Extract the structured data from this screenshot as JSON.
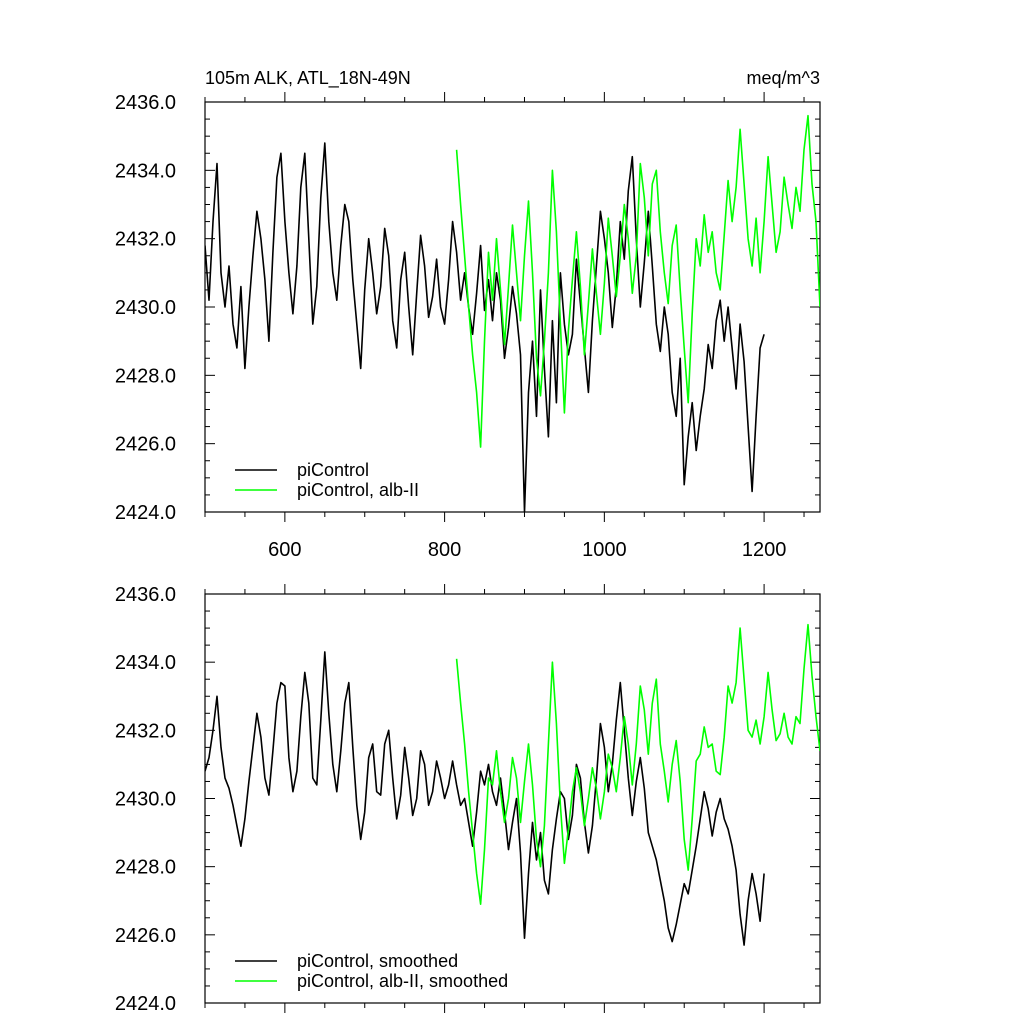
{
  "figure": {
    "title_left": "105m ALK, ATL_18N-49N",
    "title_right": "meq/m^3"
  },
  "chart_data": [
    {
      "type": "line",
      "title": "105m ALK, ATL_18N-49N",
      "units": "meq/m^3",
      "xlim": [
        500,
        1270
      ],
      "ylim": [
        2424.0,
        2436.0
      ],
      "x_ticks": [
        600,
        800,
        1000,
        1200
      ],
      "x_tick_labels": [
        "600",
        "800",
        "1000",
        "1200"
      ],
      "y_ticks": [
        2424,
        2426,
        2428,
        2430,
        2432,
        2434,
        2436
      ],
      "y_tick_labels": [
        "2424.0",
        "2426.0",
        "2428.0",
        "2430.0",
        "2432.0",
        "2434.0",
        "2436.0"
      ],
      "grid": false,
      "legend_position": "bottom-left",
      "series": [
        {
          "name": "piControl",
          "color": "#000000",
          "x": [
            500,
            505,
            510,
            515,
            520,
            525,
            530,
            535,
            540,
            545,
            550,
            555,
            560,
            565,
            570,
            575,
            580,
            585,
            590,
            595,
            600,
            605,
            610,
            615,
            620,
            625,
            630,
            635,
            640,
            645,
            650,
            655,
            660,
            665,
            670,
            675,
            680,
            685,
            690,
            695,
            700,
            705,
            710,
            715,
            720,
            725,
            730,
            735,
            740,
            745,
            750,
            755,
            760,
            765,
            770,
            775,
            780,
            785,
            790,
            795,
            800,
            805,
            810,
            815,
            820,
            825,
            830,
            835,
            840,
            845,
            850,
            855,
            860,
            865,
            870,
            875,
            880,
            885,
            890,
            895,
            900,
            905,
            910,
            915,
            920,
            925,
            930,
            935,
            940,
            945,
            950,
            955,
            960,
            965,
            970,
            975,
            980,
            985,
            990,
            995,
            1000,
            1005,
            1010,
            1015,
            1020,
            1025,
            1030,
            1035,
            1040,
            1045,
            1050,
            1055,
            1060,
            1065,
            1070,
            1075,
            1080,
            1085,
            1090,
            1095,
            1100,
            1105,
            1110,
            1115,
            1120,
            1125,
            1130,
            1135,
            1140,
            1145,
            1150,
            1155,
            1160,
            1165,
            1170,
            1175,
            1180,
            1185,
            1190,
            1195,
            1200
          ],
          "y": [
            2431.8,
            2430.2,
            2432.5,
            2434.2,
            2431.0,
            2430.0,
            2431.2,
            2429.5,
            2428.8,
            2430.6,
            2428.2,
            2430.0,
            2431.5,
            2432.8,
            2432.0,
            2430.8,
            2429.0,
            2431.6,
            2433.8,
            2434.5,
            2432.5,
            2431.0,
            2429.8,
            2431.2,
            2433.5,
            2434.5,
            2432.0,
            2429.5,
            2430.6,
            2433.2,
            2434.8,
            2432.5,
            2431.0,
            2430.2,
            2431.8,
            2433.0,
            2432.5,
            2430.8,
            2429.5,
            2428.2,
            2430.5,
            2432.0,
            2431.0,
            2429.8,
            2430.6,
            2432.3,
            2431.5,
            2429.6,
            2428.8,
            2430.8,
            2431.6,
            2430.0,
            2428.6,
            2430.4,
            2432.1,
            2431.2,
            2429.7,
            2430.3,
            2431.4,
            2430.0,
            2429.5,
            2430.8,
            2432.5,
            2431.6,
            2430.2,
            2431.0,
            2430.0,
            2429.2,
            2430.4,
            2431.8,
            2429.9,
            2430.8,
            2429.6,
            2431.0,
            2430.2,
            2428.5,
            2429.4,
            2430.6,
            2429.8,
            2428.6,
            2424.0,
            2427.5,
            2429.0,
            2426.8,
            2430.5,
            2428.2,
            2426.2,
            2429.6,
            2427.2,
            2431.0,
            2429.5,
            2428.6,
            2429.2,
            2431.4,
            2430.1,
            2428.8,
            2427.5,
            2429.6,
            2431.2,
            2432.8,
            2432.0,
            2431.0,
            2429.4,
            2430.6,
            2432.5,
            2431.4,
            2433.4,
            2434.4,
            2432.0,
            2430.0,
            2431.3,
            2432.8,
            2431.2,
            2429.5,
            2428.7,
            2430.0,
            2429.2,
            2427.5,
            2426.8,
            2428.5,
            2424.8,
            2426.2,
            2427.2,
            2425.8,
            2426.8,
            2427.6,
            2428.9,
            2428.2,
            2429.6,
            2430.2,
            2429.0,
            2430.0,
            2428.8,
            2427.6,
            2429.5,
            2428.4,
            2426.5,
            2424.6,
            2426.8,
            2428.8,
            2429.2
          ]
        },
        {
          "name": "piControl, alb-II",
          "color": "#00ff00",
          "x": [
            815,
            820,
            825,
            830,
            835,
            840,
            845,
            850,
            855,
            860,
            865,
            870,
            875,
            880,
            885,
            890,
            895,
            900,
            905,
            910,
            915,
            920,
            925,
            930,
            935,
            940,
            945,
            950,
            955,
            960,
            965,
            970,
            975,
            980,
            985,
            990,
            995,
            1000,
            1005,
            1010,
            1015,
            1020,
            1025,
            1030,
            1035,
            1040,
            1045,
            1050,
            1055,
            1060,
            1065,
            1070,
            1075,
            1080,
            1085,
            1090,
            1095,
            1100,
            1105,
            1110,
            1115,
            1120,
            1125,
            1130,
            1135,
            1140,
            1145,
            1150,
            1155,
            1160,
            1165,
            1170,
            1175,
            1180,
            1185,
            1190,
            1195,
            1200,
            1205,
            1210,
            1215,
            1220,
            1225,
            1230,
            1235,
            1240,
            1245,
            1250,
            1255,
            1260,
            1265,
            1270
          ],
          "y": [
            2434.6,
            2433.0,
            2431.5,
            2430.0,
            2428.6,
            2427.5,
            2425.9,
            2429.0,
            2431.6,
            2430.2,
            2432.0,
            2430.5,
            2428.9,
            2430.6,
            2432.4,
            2431.0,
            2429.6,
            2431.5,
            2433.1,
            2431.0,
            2428.5,
            2427.4,
            2429.0,
            2431.0,
            2434.0,
            2432.2,
            2429.5,
            2426.9,
            2429.3,
            2430.8,
            2432.2,
            2430.6,
            2428.6,
            2430.1,
            2431.7,
            2430.4,
            2429.2,
            2430.7,
            2432.6,
            2431.5,
            2430.3,
            2431.5,
            2433.0,
            2432.0,
            2430.4,
            2431.5,
            2434.2,
            2433.2,
            2431.5,
            2433.6,
            2434.0,
            2432.2,
            2431.0,
            2430.1,
            2431.8,
            2432.4,
            2430.5,
            2428.8,
            2427.2,
            2429.8,
            2432.0,
            2431.2,
            2432.7,
            2431.6,
            2432.2,
            2431.0,
            2430.5,
            2432.1,
            2433.7,
            2432.5,
            2433.5,
            2435.2,
            2433.6,
            2432.0,
            2431.2,
            2432.6,
            2431.0,
            2432.5,
            2434.4,
            2433.0,
            2431.6,
            2432.2,
            2433.8,
            2433.0,
            2432.3,
            2433.5,
            2432.8,
            2434.6,
            2435.6,
            2433.6,
            2432.5,
            2430.0
          ]
        }
      ]
    },
    {
      "type": "line",
      "xlim": [
        500,
        1270
      ],
      "ylim": [
        2424.0,
        2436.0
      ],
      "x_ticks": [
        600,
        800,
        1000,
        1200
      ],
      "y_ticks": [
        2424,
        2426,
        2428,
        2430,
        2432,
        2434,
        2436
      ],
      "y_tick_labels": [
        "2424.0",
        "2426.0",
        "2428.0",
        "2430.0",
        "2432.0",
        "2434.0",
        "2436.0"
      ],
      "grid": false,
      "legend_position": "bottom-left",
      "series": [
        {
          "name": "piControl, smoothed",
          "color": "#000000",
          "x": [
            500,
            505,
            510,
            515,
            520,
            525,
            530,
            535,
            540,
            545,
            550,
            555,
            560,
            565,
            570,
            575,
            580,
            585,
            590,
            595,
            600,
            605,
            610,
            615,
            620,
            625,
            630,
            635,
            640,
            645,
            650,
            655,
            660,
            665,
            670,
            675,
            680,
            685,
            690,
            695,
            700,
            705,
            710,
            715,
            720,
            725,
            730,
            735,
            740,
            745,
            750,
            755,
            760,
            765,
            770,
            775,
            780,
            785,
            790,
            795,
            800,
            805,
            810,
            815,
            820,
            825,
            830,
            835,
            840,
            845,
            850,
            855,
            860,
            865,
            870,
            875,
            880,
            885,
            890,
            895,
            900,
            905,
            910,
            915,
            920,
            925,
            930,
            935,
            940,
            945,
            950,
            955,
            960,
            965,
            970,
            975,
            980,
            985,
            990,
            995,
            1000,
            1005,
            1010,
            1015,
            1020,
            1025,
            1030,
            1035,
            1040,
            1045,
            1050,
            1055,
            1060,
            1065,
            1070,
            1075,
            1080,
            1085,
            1090,
            1095,
            1100,
            1105,
            1110,
            1115,
            1120,
            1125,
            1130,
            1135,
            1140,
            1145,
            1150,
            1155,
            1160,
            1165,
            1170,
            1175,
            1180,
            1185,
            1190,
            1195,
            1200
          ],
          "y": [
            2430.8,
            2431.2,
            2432.0,
            2433.0,
            2431.5,
            2430.6,
            2430.3,
            2429.8,
            2429.2,
            2428.6,
            2429.4,
            2430.5,
            2431.5,
            2432.5,
            2431.8,
            2430.6,
            2430.1,
            2431.4,
            2432.8,
            2433.4,
            2433.3,
            2431.2,
            2430.2,
            2430.8,
            2432.4,
            2433.7,
            2432.8,
            2430.6,
            2430.4,
            2432.3,
            2434.3,
            2432.5,
            2431.0,
            2430.2,
            2431.4,
            2432.8,
            2433.4,
            2431.5,
            2429.8,
            2428.8,
            2429.6,
            2431.2,
            2431.6,
            2430.2,
            2430.1,
            2431.6,
            2432.0,
            2430.6,
            2429.4,
            2430.1,
            2431.5,
            2430.6,
            2429.5,
            2430.0,
            2431.4,
            2431.0,
            2429.8,
            2430.2,
            2431.1,
            2430.6,
            2430.0,
            2430.4,
            2431.1,
            2430.4,
            2429.8,
            2430.0,
            2429.3,
            2428.6,
            2429.6,
            2430.8,
            2430.4,
            2431.0,
            2430.2,
            2429.8,
            2430.6,
            2429.6,
            2428.5,
            2429.3,
            2430.0,
            2428.4,
            2425.9,
            2427.8,
            2429.3,
            2428.2,
            2429.0,
            2427.6,
            2427.2,
            2428.5,
            2429.4,
            2430.2,
            2430.0,
            2428.8,
            2429.5,
            2431.0,
            2430.6,
            2429.3,
            2428.4,
            2429.2,
            2430.6,
            2432.2,
            2431.5,
            2430.2,
            2431.0,
            2432.3,
            2433.4,
            2432.0,
            2430.6,
            2429.5,
            2430.5,
            2431.2,
            2430.3,
            2429.0,
            2428.6,
            2428.2,
            2427.6,
            2427.0,
            2426.2,
            2425.8,
            2426.3,
            2426.9,
            2427.5,
            2427.2,
            2427.9,
            2428.6,
            2429.4,
            2430.2,
            2429.7,
            2428.9,
            2429.6,
            2430.0,
            2429.4,
            2429.1,
            2428.6,
            2427.9,
            2426.6,
            2425.7,
            2427.0,
            2427.8,
            2427.2,
            2426.4,
            2427.8
          ]
        },
        {
          "name": "piControl, alb-II, smoothed",
          "color": "#00ff00",
          "x": [
            815,
            820,
            825,
            830,
            835,
            840,
            845,
            850,
            855,
            860,
            865,
            870,
            875,
            880,
            885,
            890,
            895,
            900,
            905,
            910,
            915,
            920,
            925,
            930,
            935,
            940,
            945,
            950,
            955,
            960,
            965,
            970,
            975,
            980,
            985,
            990,
            995,
            1000,
            1005,
            1010,
            1015,
            1020,
            1025,
            1030,
            1035,
            1040,
            1045,
            1050,
            1055,
            1060,
            1065,
            1070,
            1075,
            1080,
            1085,
            1090,
            1095,
            1100,
            1105,
            1110,
            1115,
            1120,
            1125,
            1130,
            1135,
            1140,
            1145,
            1150,
            1155,
            1160,
            1165,
            1170,
            1175,
            1180,
            1185,
            1190,
            1195,
            1200,
            1205,
            1210,
            1215,
            1220,
            1225,
            1230,
            1235,
            1240,
            1245,
            1250,
            1255,
            1260,
            1265,
            1270
          ],
          "y": [
            2434.1,
            2432.8,
            2431.6,
            2430.2,
            2429.0,
            2427.8,
            2426.9,
            2428.5,
            2430.6,
            2430.4,
            2431.4,
            2430.2,
            2429.3,
            2430.0,
            2431.2,
            2430.6,
            2429.3,
            2430.5,
            2431.6,
            2430.4,
            2428.8,
            2428.0,
            2429.2,
            2431.6,
            2434.0,
            2432.2,
            2429.8,
            2428.1,
            2429.1,
            2430.2,
            2430.9,
            2430.2,
            2429.2,
            2430.0,
            2430.9,
            2430.3,
            2429.4,
            2430.2,
            2431.3,
            2430.9,
            2430.2,
            2431.2,
            2432.4,
            2431.6,
            2430.4,
            2431.6,
            2433.3,
            2432.6,
            2431.3,
            2432.8,
            2433.5,
            2431.6,
            2430.8,
            2429.9,
            2431.0,
            2431.7,
            2430.5,
            2428.8,
            2427.9,
            2429.4,
            2431.1,
            2431.3,
            2432.1,
            2431.5,
            2431.6,
            2430.8,
            2430.7,
            2431.8,
            2433.3,
            2432.8,
            2433.4,
            2435.0,
            2433.5,
            2432.0,
            2431.8,
            2432.3,
            2431.6,
            2432.4,
            2433.7,
            2432.6,
            2431.7,
            2431.9,
            2432.5,
            2431.8,
            2431.6,
            2432.4,
            2432.2,
            2433.8,
            2435.1,
            2433.6,
            2432.4,
            2431.4
          ]
        }
      ]
    }
  ]
}
